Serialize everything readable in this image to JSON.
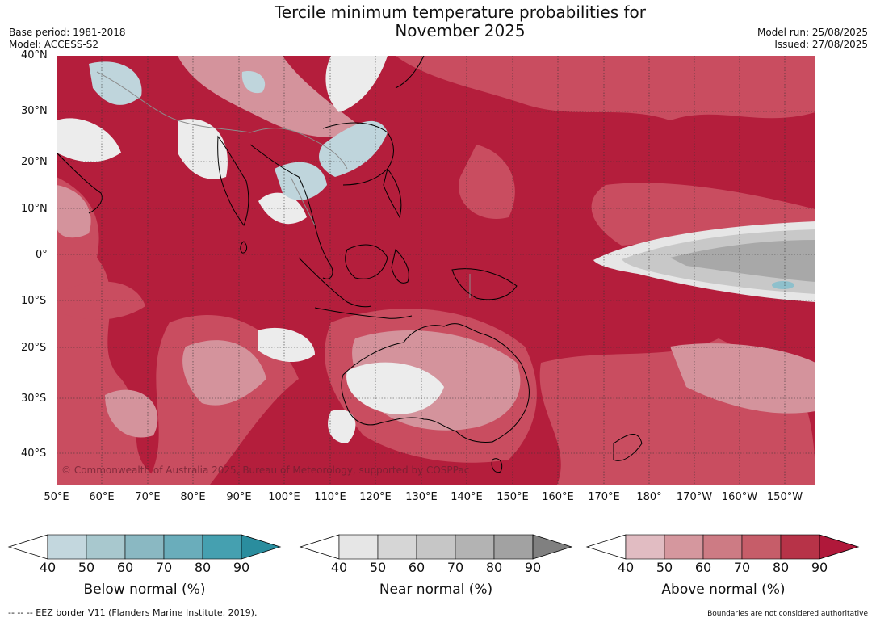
{
  "title": {
    "line1": "Tercile minimum temperature probabilities for",
    "line2": "November 2025"
  },
  "meta": {
    "base_period": "Base period: 1981-2018",
    "model": "Model: ACCESS-S2",
    "model_run": "Model run: 25/08/2025",
    "issued": "Issued: 27/08/2025"
  },
  "map": {
    "lat_labels": [
      "40°N",
      "30°N",
      "20°N",
      "10°N",
      "0°",
      "10°S",
      "20°S",
      "30°S",
      "40°S"
    ],
    "lon_labels": [
      "50°E",
      "60°E",
      "70°E",
      "80°E",
      "90°E",
      "100°E",
      "110°E",
      "120°E",
      "130°E",
      "140°E",
      "150°E",
      "160°E",
      "170°E",
      "180°",
      "170°W",
      "160°W",
      "150°W"
    ],
    "copyright": "© Commonwealth of Australia 2025, Bureau of Meteorology, supported by COSPPac",
    "colors": {
      "above_dominant": "#b41e3c",
      "near_grey": "#a6a6a6",
      "below_blue": "#bfd5dc"
    }
  },
  "colorbars": [
    {
      "label": "Below normal (%)",
      "ticks": [
        "40",
        "50",
        "60",
        "70",
        "80",
        "90"
      ],
      "colors": [
        "#c3d7de",
        "#a8c8ce",
        "#8ab8c2",
        "#6aadbb",
        "#45a0b0"
      ],
      "extend_color": "#2a8d9e"
    },
    {
      "label": "Near normal (%)",
      "ticks": [
        "40",
        "50",
        "60",
        "70",
        "80",
        "90"
      ],
      "colors": [
        "#e6e6e6",
        "#d6d6d6",
        "#c6c6c6",
        "#b3b3b3",
        "#a2a2a2"
      ],
      "extend_color": "#808080"
    },
    {
      "label": "Above normal (%)",
      "ticks": [
        "40",
        "50",
        "60",
        "70",
        "80",
        "90"
      ],
      "colors": [
        "#e1bcc2",
        "#d5979e",
        "#cd7b84",
        "#c65d69",
        "#b73348"
      ],
      "extend_color": "#b0183a"
    }
  ],
  "footer": {
    "eez": "--  --  -- EEZ border V11 (Flanders Marine Institute, 2019).",
    "disclaimer": "Boundaries are not considered authoritative"
  }
}
